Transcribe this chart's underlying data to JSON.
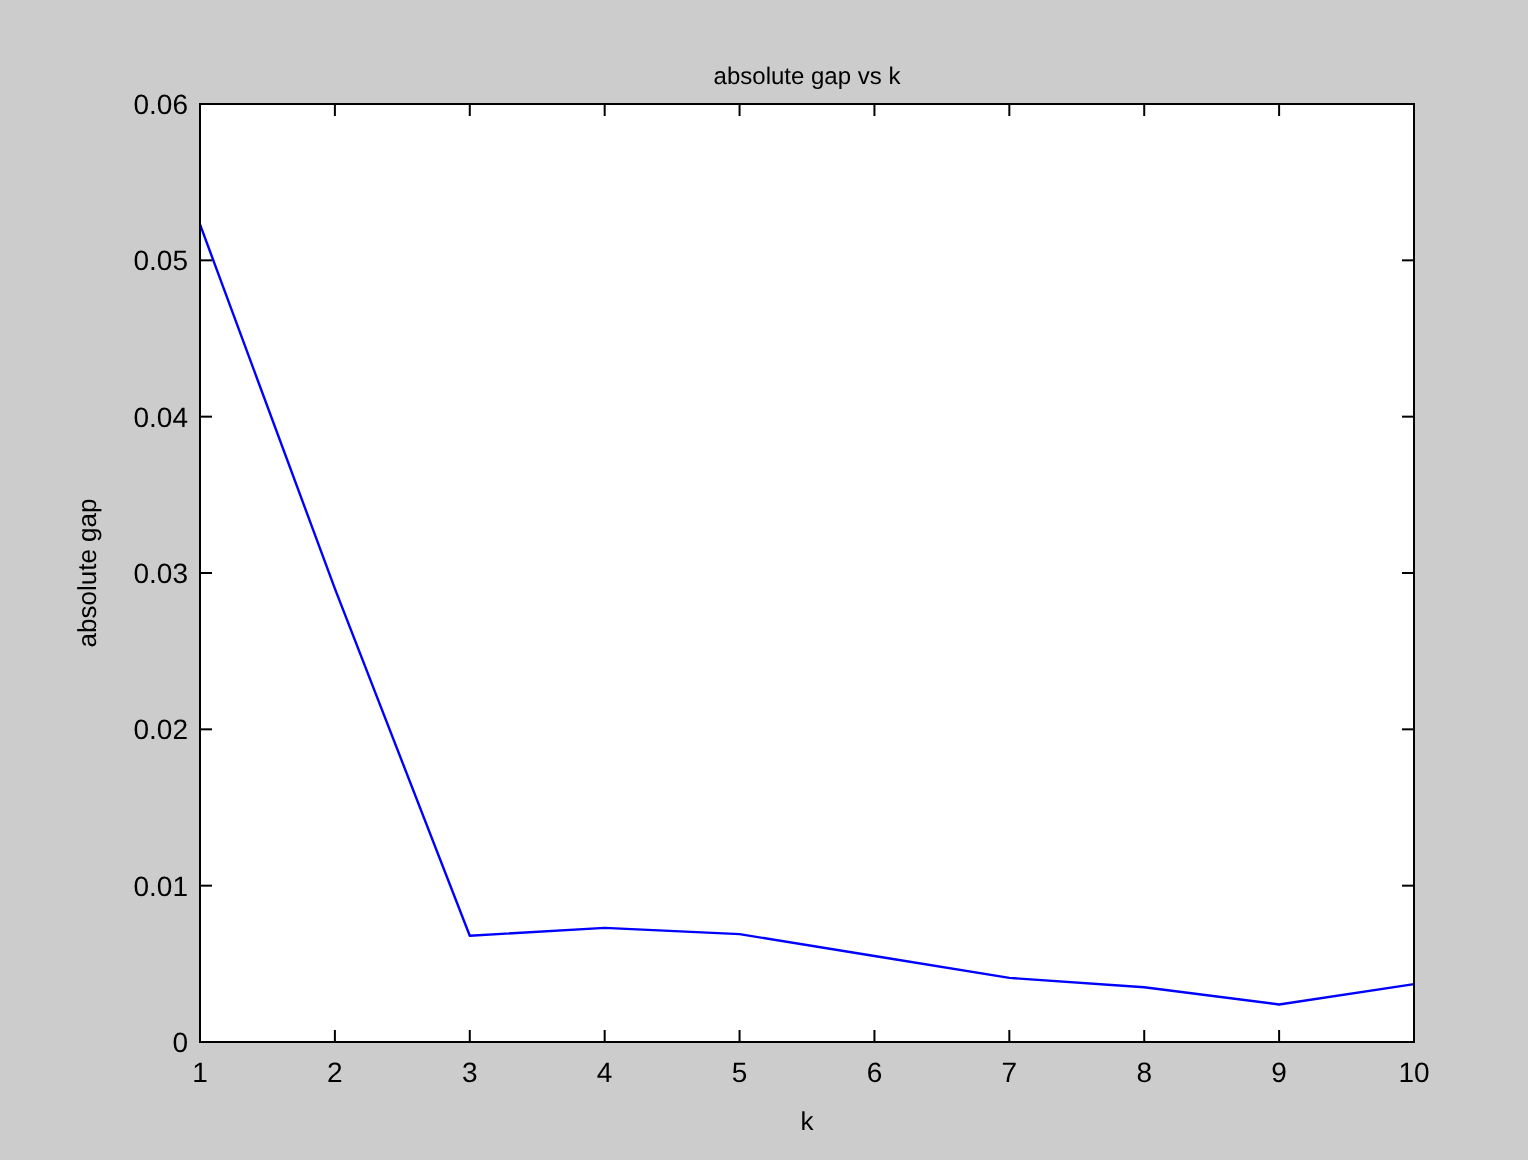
{
  "chart_data": {
    "type": "line",
    "title": "absolute gap vs k",
    "xlabel": "k",
    "ylabel": "absolute gap",
    "x": [
      1,
      2,
      3,
      4,
      5,
      6,
      7,
      8,
      9,
      10
    ],
    "series": [
      {
        "color": "#0000ff",
        "values": [
          0.0523,
          0.029,
          0.0068,
          0.0073,
          0.0069,
          0.0055,
          0.0041,
          0.0035,
          0.0024,
          0.0037
        ]
      }
    ],
    "xlim": [
      1,
      10
    ],
    "xticks": [
      1,
      2,
      3,
      4,
      5,
      6,
      7,
      8,
      9,
      10
    ],
    "ylim": [
      0,
      0.06
    ],
    "yticks": [
      0,
      0.01,
      0.02,
      0.03,
      0.04,
      0.05,
      0.06
    ],
    "grid": false,
    "marker": "none",
    "line_style": "solid"
  }
}
